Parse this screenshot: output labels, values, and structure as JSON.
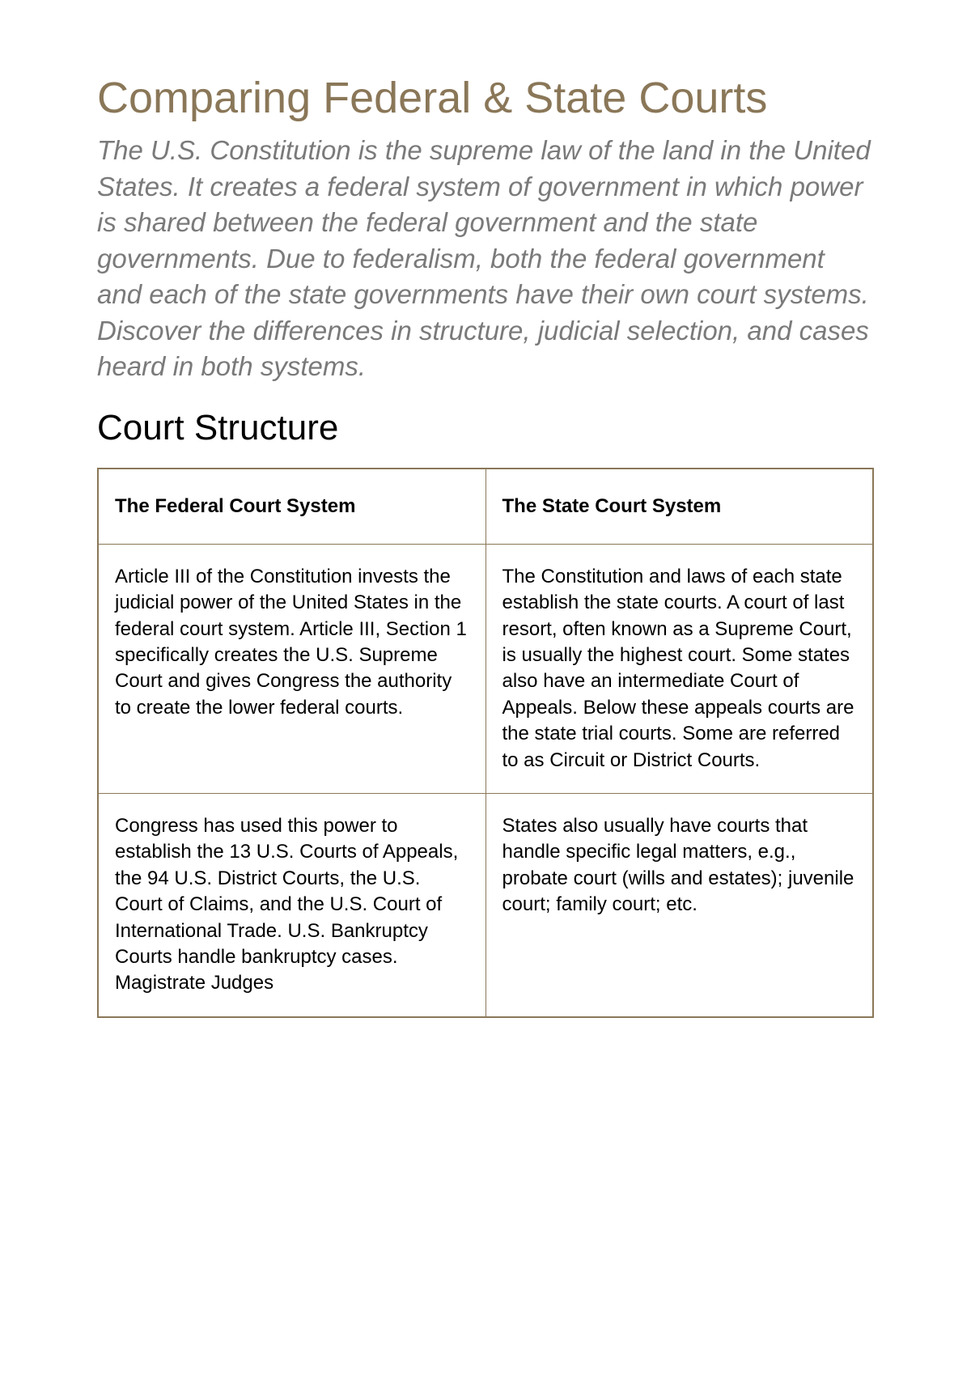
{
  "title": "Comparing Federal & State Courts",
  "intro": "The U.S. Constitution is the supreme law of the land in the United States. It creates a federal system of government in which power is shared between the federal government and the state governments. Due to federalism, both the federal government and each of the state governments have their own court systems. Discover the differences in structure, judicial selection, and cases heard in both systems.",
  "section_heading": "Court Structure",
  "table": {
    "headers": {
      "federal": "The Federal Court System",
      "state": "The State Court System"
    },
    "rows": [
      {
        "federal": "Article III of the Constitution invests the judicial power of the United States in the federal court system. Article III, Section 1 specifically creates the U.S. Supreme Court and gives Congress the authority to create the lower federal courts.",
        "state": "The Constitution and laws of each state establish the state courts. A court of last resort, often known as a Supreme Court, is usually the highest court. Some states also have an intermediate Court of Appeals. Below these appeals courts are the state trial courts. Some are referred to as Circuit or District Courts."
      },
      {
        "federal": "Congress has used this power to establish the 13 U.S. Courts of Appeals, the 94 U.S. District Courts, the U.S. Court of Claims, and the U.S. Court of International Trade. U.S. Bankruptcy Courts handle bankruptcy cases. Magistrate Judges",
        "state": "States also usually have courts that handle specific legal matters, e.g., probate court (wills and estates); juvenile court; family court; etc."
      }
    ]
  },
  "colors": {
    "title_color": "#8a7758",
    "intro_color": "#7a7a7a",
    "heading_color": "#000000",
    "body_color": "#000000",
    "border_color": "#8a7758",
    "background": "#ffffff"
  }
}
